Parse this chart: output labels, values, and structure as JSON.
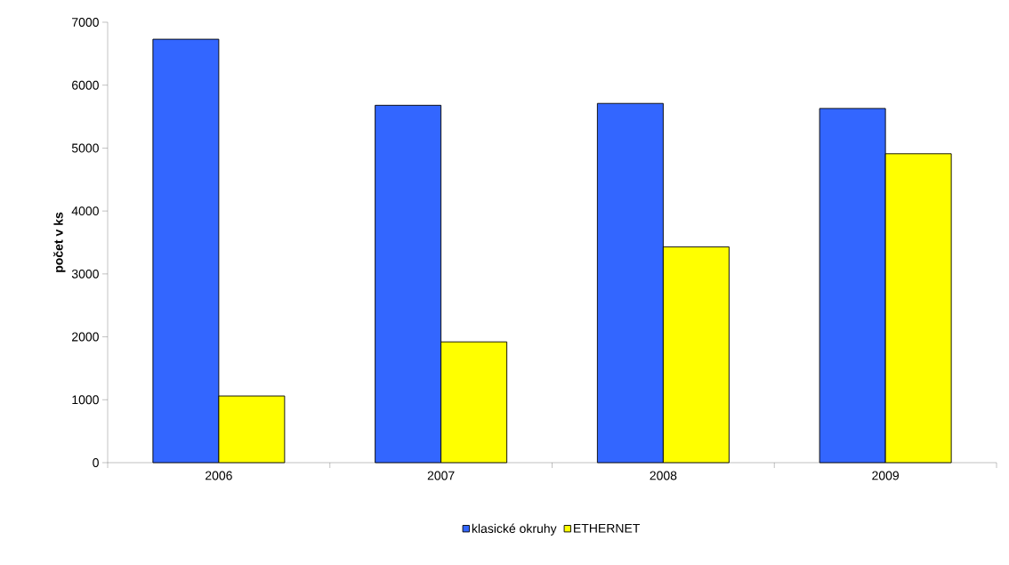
{
  "chart_data": {
    "type": "bar",
    "ylabel": "počet v ks",
    "categories": [
      "2006",
      "2007",
      "2008",
      "2009"
    ],
    "series": [
      {
        "name": "klasické okruhy",
        "color": "#3366ff",
        "values": [
          6730,
          5680,
          5710,
          5630
        ]
      },
      {
        "name": "ETHERNET",
        "color": "#ffff00",
        "values": [
          1060,
          1920,
          3430,
          4910
        ]
      }
    ],
    "ylim": [
      0,
      7000
    ],
    "yticks": [
      0,
      1000,
      2000,
      3000,
      4000,
      5000,
      6000,
      7000
    ],
    "grid": false,
    "legend": "bottom"
  }
}
